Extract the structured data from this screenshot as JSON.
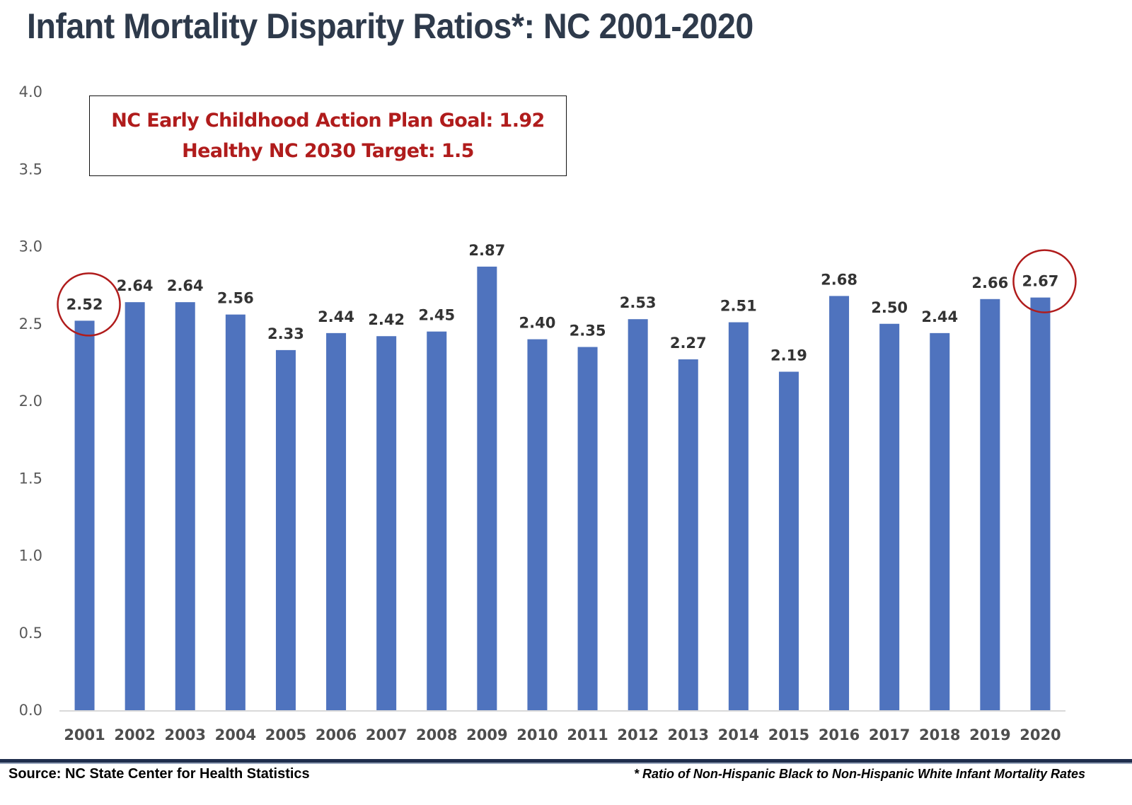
{
  "title": "Infant Mortality Disparity Ratios*: NC 2001-2020",
  "goal_box": {
    "line1": "NC Early Childhood Action Plan Goal: 1.92",
    "line2": "Healthy NC 2030 Target: 1.5"
  },
  "footer": {
    "source": "Source: NC State Center for Health Statistics",
    "footnote": "* Ratio of Non-Hispanic Black to Non-Hispanic White Infant Mortality Rates"
  },
  "colors": {
    "bar": "#4f73be",
    "highlight_circle": "#b01c1c",
    "title": "#2e3a4b",
    "goal_text": "#b01c1c"
  },
  "chart_data": {
    "type": "bar",
    "title": "Infant Mortality Disparity Ratios*: NC 2001-2020",
    "xlabel": "",
    "ylabel": "",
    "ylim": [
      0,
      4.0
    ],
    "yticks": [
      "0.0",
      "0.5",
      "1.0",
      "1.5",
      "2.0",
      "2.5",
      "3.0",
      "3.5",
      "4.0"
    ],
    "grid": false,
    "legend": "none",
    "categories": [
      "2001",
      "2002",
      "2003",
      "2004",
      "2005",
      "2006",
      "2007",
      "2008",
      "2009",
      "2010",
      "2011",
      "2012",
      "2013",
      "2014",
      "2015",
      "2016",
      "2017",
      "2018",
      "2019",
      "2020"
    ],
    "values": [
      2.52,
      2.64,
      2.64,
      2.56,
      2.33,
      2.44,
      2.42,
      2.45,
      2.87,
      2.4,
      2.35,
      2.53,
      2.27,
      2.51,
      2.19,
      2.68,
      2.5,
      2.44,
      2.66,
      2.67
    ],
    "data_labels": [
      "2.52",
      "2.64",
      "2.64",
      "2.56",
      "2.33",
      "2.44",
      "2.42",
      "2.45",
      "2.87",
      "2.40",
      "2.35",
      "2.53",
      "2.27",
      "2.51",
      "2.19",
      "2.68",
      "2.50",
      "2.44",
      "2.66",
      "2.67"
    ],
    "highlighted": [
      "2001",
      "2020"
    ],
    "annotations": [
      "NC Early Childhood Action Plan Goal: 1.92",
      "Healthy NC 2030 Target: 1.5"
    ]
  }
}
